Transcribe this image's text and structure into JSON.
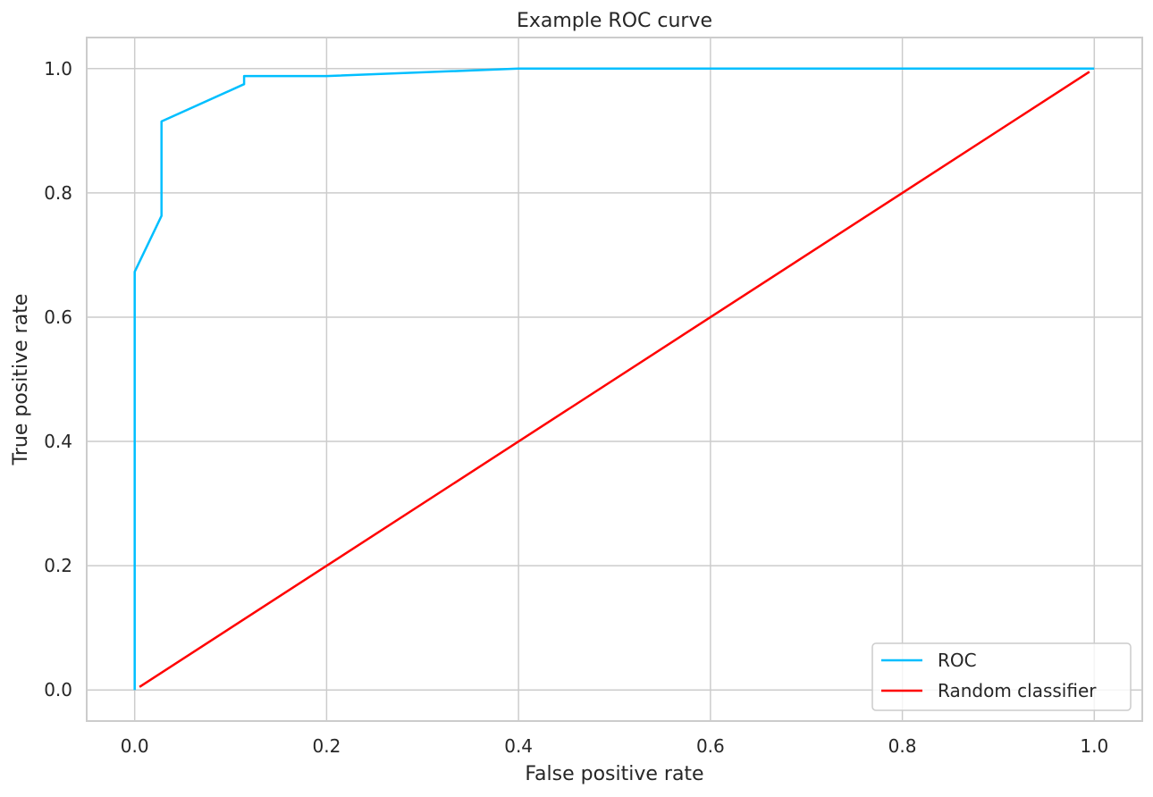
{
  "chart_data": {
    "type": "line",
    "title": "Example ROC curve",
    "xlabel": "False positive rate",
    "ylabel": "True positive rate",
    "xlim": [
      -0.05,
      1.05
    ],
    "ylim": [
      -0.05,
      1.05
    ],
    "xticks": [
      0.0,
      0.2,
      0.4,
      0.6,
      0.8,
      1.0
    ],
    "yticks": [
      0.0,
      0.2,
      0.4,
      0.6,
      0.8,
      1.0
    ],
    "xtick_labels": [
      "0.0",
      "0.2",
      "0.4",
      "0.6",
      "0.8",
      "1.0"
    ],
    "ytick_labels": [
      "0.0",
      "0.2",
      "0.4",
      "0.6",
      "0.8",
      "1.0"
    ],
    "grid": true,
    "legend_position": "lower-right",
    "series": [
      {
        "name": "ROC",
        "color": "#00bfff",
        "x": [
          0.0,
          0.0,
          0.028,
          0.028,
          0.114,
          0.114,
          0.2,
          0.4,
          1.0
        ],
        "y": [
          0.0,
          0.673,
          0.763,
          0.915,
          0.975,
          0.988,
          0.988,
          1.0,
          1.0
        ]
      },
      {
        "name": "Random classifier",
        "color": "#ff0000",
        "x": [
          0.005,
          0.995
        ],
        "y": [
          0.005,
          0.995
        ]
      }
    ]
  }
}
